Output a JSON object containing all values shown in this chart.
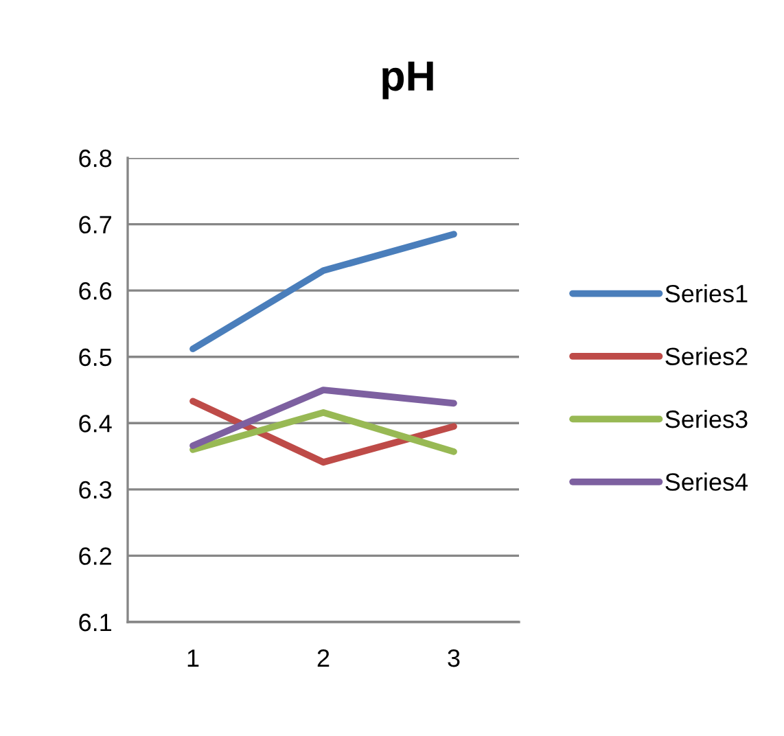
{
  "chart_data": {
    "type": "line",
    "title": "pH",
    "categories": [
      "1",
      "2",
      "3"
    ],
    "series": [
      {
        "name": "Series1",
        "color": "#4a7ebb",
        "values": [
          6.512,
          6.63,
          6.685
        ]
      },
      {
        "name": "Series2",
        "color": "#be4b48",
        "values": [
          6.433,
          6.341,
          6.395
        ]
      },
      {
        "name": "Series3",
        "color": "#98b954",
        "values": [
          6.36,
          6.416,
          6.357
        ]
      },
      {
        "name": "Series4",
        "color": "#7d60a0",
        "values": [
          6.366,
          6.45,
          6.43
        ]
      }
    ],
    "ylim": [
      6.1,
      6.8
    ],
    "yticks": [
      6.1,
      6.2,
      6.3,
      6.4,
      6.5,
      6.6,
      6.7,
      6.8
    ],
    "grid": "y",
    "legend": "right",
    "marker": "none",
    "line_style": "solid"
  }
}
